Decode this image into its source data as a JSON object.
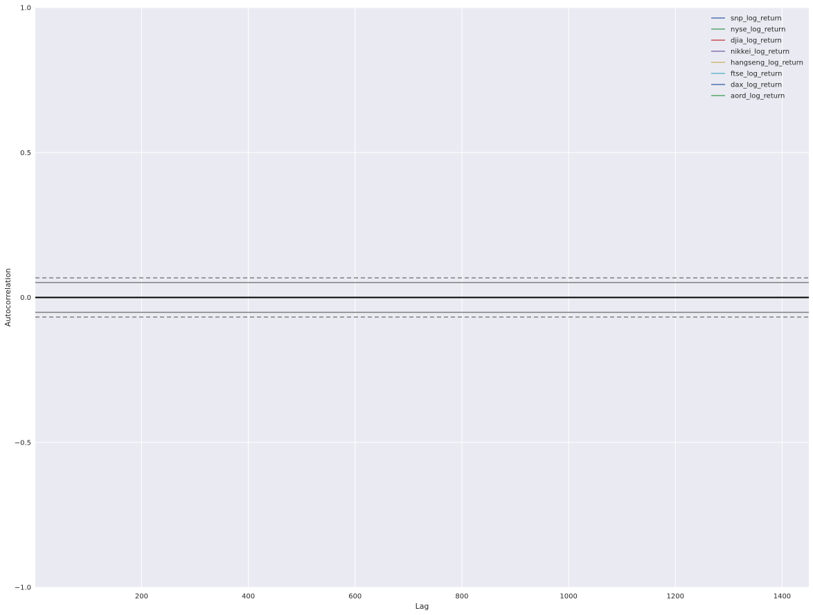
{
  "chart_data": {
    "type": "line",
    "xlabel": "Lag",
    "ylabel": "Autocorrelation",
    "xlim": [
      1,
      1450
    ],
    "ylim": [
      -1.0,
      1.0
    ],
    "xticks": [
      200,
      400,
      600,
      800,
      1000,
      1200,
      1400
    ],
    "xtick_labels": [
      "200",
      "400",
      "600",
      "800",
      "1000",
      "1200",
      "1400"
    ],
    "yticks": [
      -1.0,
      -0.5,
      0.0,
      0.5,
      1.0
    ],
    "ytick_labels": [
      "−1.0",
      "−0.5",
      "0.0",
      "0.5",
      "1.0"
    ],
    "grid": true,
    "background_color": "#eaeaf2",
    "legend_position": "top-right",
    "reference_lines": [
      {
        "y": 0.0,
        "color": "#000000",
        "style": "solid",
        "role": "zero"
      },
      {
        "y": 0.0514,
        "color": "#808080",
        "style": "solid",
        "role": "95% confidence band"
      },
      {
        "y": -0.0514,
        "color": "#808080",
        "style": "solid",
        "role": "95% confidence band"
      },
      {
        "y": 0.0676,
        "color": "#808080",
        "style": "dashed",
        "role": "99% confidence band"
      },
      {
        "y": -0.0676,
        "color": "#808080",
        "style": "dashed",
        "role": "99% confidence band"
      }
    ],
    "series": [
      {
        "name": "snp_log_return",
        "color": "#4c72b0"
      },
      {
        "name": "nyse_log_return",
        "color": "#55a868"
      },
      {
        "name": "djia_log_return",
        "color": "#c44e52"
      },
      {
        "name": "nikkei_log_return",
        "color": "#8172b2"
      },
      {
        "name": "hangseng_log_return",
        "color": "#ccb974"
      },
      {
        "name": "ftse_log_return",
        "color": "#64b5cd"
      },
      {
        "name": "dax_log_return",
        "color": "#4c72b0"
      },
      {
        "name": "aord_log_return",
        "color": "#55a868"
      }
    ]
  }
}
